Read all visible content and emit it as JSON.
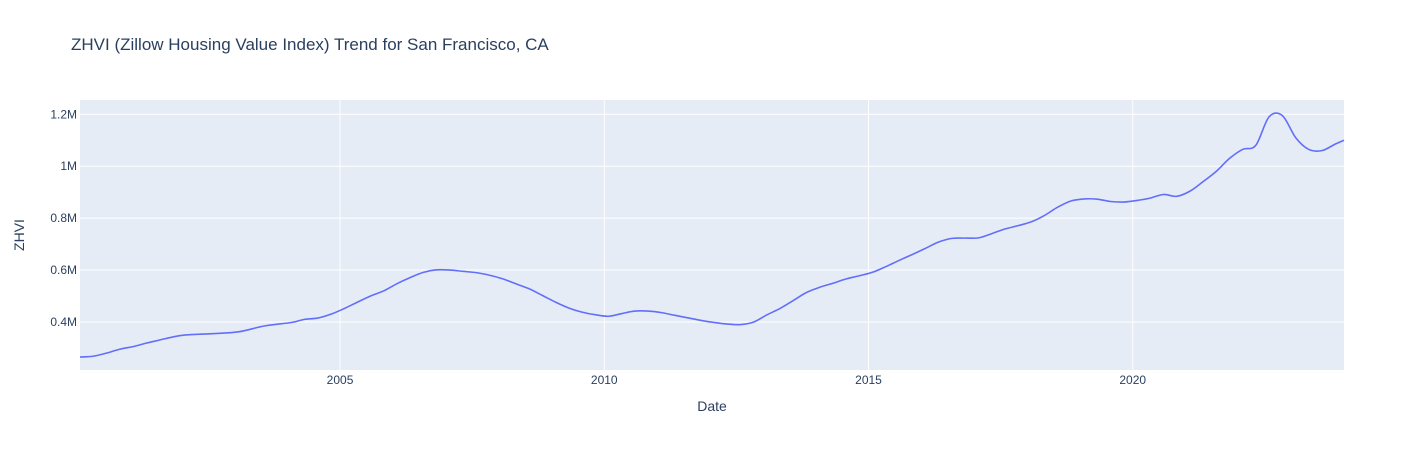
{
  "chart_data": {
    "type": "line",
    "title": "ZHVI (Zillow Housing Value Index) Trend for San Francisco, CA",
    "xlabel": "Date",
    "ylabel": "ZHVI",
    "xlim": [
      "2000-01-31",
      "2023-12-31"
    ],
    "ylim": [
      215000,
      1255000
    ],
    "x_ticks": [
      {
        "value": "2005-01-01",
        "label": "2005"
      },
      {
        "value": "2010-01-01",
        "label": "2010"
      },
      {
        "value": "2015-01-01",
        "label": "2015"
      },
      {
        "value": "2020-01-01",
        "label": "2020"
      }
    ],
    "y_ticks": [
      {
        "value": 400000,
        "label": "0.4M"
      },
      {
        "value": 600000,
        "label": "0.6M"
      },
      {
        "value": 800000,
        "label": "0.8M"
      },
      {
        "value": 1000000,
        "label": "1M"
      },
      {
        "value": 1200000,
        "label": "1.2M"
      }
    ],
    "grid": true,
    "legend": "none",
    "colors": {
      "plot_background": "#E5ECF6",
      "gridline": "#FFFFFF",
      "line": "#636EFA",
      "text": "#2A3F5F"
    },
    "series": [
      {
        "x": [
          "2000-01-31",
          "2000-04-30",
          "2000-07-31",
          "2000-10-31",
          "2001-01-31",
          "2001-04-30",
          "2001-07-31",
          "2001-10-31",
          "2002-01-31",
          "2002-07-31",
          "2003-01-31",
          "2003-07-31",
          "2004-01-31",
          "2004-04-30",
          "2004-07-31",
          "2004-10-31",
          "2005-01-31",
          "2005-04-30",
          "2005-07-31",
          "2005-10-31",
          "2006-01-31",
          "2006-04-30",
          "2006-07-31",
          "2006-10-31",
          "2007-01-31",
          "2007-04-30",
          "2007-07-31",
          "2007-10-31",
          "2008-01-31",
          "2008-04-30",
          "2008-07-31",
          "2008-10-31",
          "2009-01-31",
          "2009-04-30",
          "2009-07-31",
          "2009-10-31",
          "2010-01-31",
          "2010-04-30",
          "2010-07-31",
          "2010-10-31",
          "2011-01-31",
          "2011-04-30",
          "2011-07-31",
          "2011-10-31",
          "2012-01-31",
          "2012-04-30",
          "2012-07-31",
          "2012-10-31",
          "2013-01-31",
          "2013-04-30",
          "2013-07-31",
          "2013-10-31",
          "2014-01-31",
          "2014-04-30",
          "2014-07-31",
          "2014-10-31",
          "2015-01-31",
          "2015-04-30",
          "2015-07-31",
          "2015-10-31",
          "2016-01-31",
          "2016-04-30",
          "2016-07-31",
          "2016-10-31",
          "2017-01-31",
          "2017-04-30",
          "2017-07-31",
          "2017-10-31",
          "2018-01-31",
          "2018-04-30",
          "2018-07-31",
          "2018-10-31",
          "2019-01-31",
          "2019-04-30",
          "2019-07-31",
          "2019-10-31",
          "2020-01-31",
          "2020-04-30",
          "2020-07-31",
          "2020-10-31",
          "2021-01-31",
          "2021-04-30",
          "2021-07-31",
          "2021-10-31",
          "2022-01-31",
          "2022-04-30",
          "2022-07-31",
          "2022-10-31",
          "2023-01-31",
          "2023-04-30",
          "2023-07-31",
          "2023-10-31",
          "2023-12-31"
        ],
        "y": [
          265000,
          268000,
          280000,
          295000,
          305000,
          318000,
          330000,
          342000,
          350000,
          355000,
          362000,
          385000,
          398000,
          410000,
          415000,
          430000,
          452000,
          476000,
          500000,
          520000,
          548000,
          571000,
          591000,
          601000,
          600000,
          595000,
          590000,
          580000,
          566000,
          547000,
          528000,
          502000,
          476000,
          454000,
          438000,
          428000,
          422000,
          432000,
          442000,
          442000,
          436000,
          426000,
          416000,
          406000,
          398000,
          392000,
          390000,
          400000,
          428000,
          452000,
          483000,
          514000,
          534000,
          549000,
          566000,
          578000,
          592000,
          613000,
          637000,
          660000,
          684000,
          708000,
          722000,
          723000,
          724000,
          740000,
          758000,
          771000,
          786000,
          810000,
          842000,
          866000,
          874000,
          873000,
          864000,
          862000,
          868000,
          877000,
          891000,
          884000,
          904000,
          940000,
          980000,
          1030000,
          1065000,
          1080000,
          1190000,
          1195000,
          1110000,
          1065000,
          1060000,
          1085000,
          1100000
        ]
      }
    ]
  }
}
